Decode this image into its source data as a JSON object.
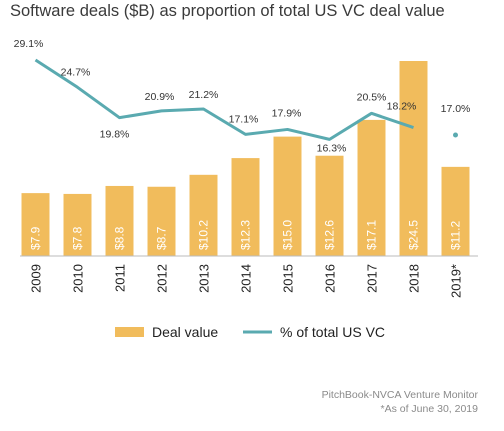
{
  "chart_data": {
    "type": "bar",
    "title": "Software deals ($B) as proportion of total US VC deal value",
    "categories": [
      "2009",
      "2010",
      "2011",
      "2012",
      "2013",
      "2014",
      "2015",
      "2016",
      "2017",
      "2018",
      "2019*"
    ],
    "series": [
      {
        "name": "Deal value",
        "type": "bar",
        "values": [
          7.9,
          7.8,
          8.8,
          8.7,
          10.2,
          12.3,
          15.0,
          12.6,
          17.1,
          24.5,
          11.2
        ],
        "labels": [
          "$7.9",
          "$7.8",
          "$8.8",
          "$8.7",
          "$10.2",
          "$12.3",
          "$15.0",
          "$12.6",
          "$17.1",
          "$24.5",
          "$11.2"
        ],
        "color": "#f1bc5c"
      },
      {
        "name": "% of total US VC",
        "type": "line",
        "values": [
          29.1,
          24.7,
          19.8,
          20.9,
          21.2,
          17.1,
          17.9,
          16.3,
          20.5,
          18.2,
          17.0
        ],
        "labels": [
          "29.1%",
          "24.7%",
          "19.8%",
          "20.9%",
          "21.2%",
          "17.1%",
          "17.9%",
          "16.3%",
          "20.5%",
          "18.2%",
          "17.0%"
        ],
        "color": "#5aaab0"
      }
    ],
    "legend_position": "bottom",
    "grid": false
  },
  "source": "PitchBook-NVCA Venture Monitor",
  "footnote": "*As of June 30, 2019"
}
